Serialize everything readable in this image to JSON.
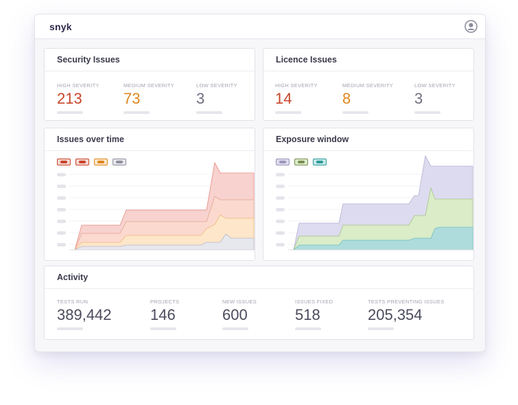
{
  "app": {
    "brand": "snyk"
  },
  "colors": {
    "high": "#c8452a",
    "medium": "#e0861c",
    "low": "#6e6e80"
  },
  "security": {
    "title": "Security Issues",
    "metrics": [
      {
        "label": "HIGH SEVERITY",
        "value": "213"
      },
      {
        "label": "MEDIUM  SEVERITY",
        "value": "73"
      },
      {
        "label": "LOW SEVERITY",
        "value": "3"
      }
    ]
  },
  "licence": {
    "title": "Licence Issues",
    "metrics": [
      {
        "label": "HIGH SEVERITY",
        "value": "14"
      },
      {
        "label": "MEDIUM  SEVERITY",
        "value": "8"
      },
      {
        "label": "LOW SEVERITY",
        "value": "3"
      }
    ]
  },
  "issues_chart": {
    "title": "Issues over time",
    "legend_colors": [
      "#c8452a",
      "#c8452a",
      "#e0861c",
      "#8e8e9c"
    ],
    "legend_fills": [
      "#f5d6d0",
      "#f5d6d0",
      "#fbe5c8",
      "#e6e6ec"
    ]
  },
  "exposure_chart": {
    "title": "Exposure window",
    "legend_colors": [
      "#9a96b8",
      "#7d8c55",
      "#2e9a9a"
    ],
    "legend_fills": [
      "#dcdaee",
      "#d9ecc6",
      "#c5e8e8"
    ]
  },
  "activity": {
    "title": "Activity",
    "metrics": [
      {
        "label": "TESTS RUN",
        "value": "389,442"
      },
      {
        "label": "PROJECTS",
        "value": "146"
      },
      {
        "label": "NEW ISSUES",
        "value": "600"
      },
      {
        "label": "ISSUES FIXED",
        "value": "518"
      },
      {
        "label": "TESTS PREVENTING ISSUES",
        "value": "205,354"
      }
    ]
  }
}
